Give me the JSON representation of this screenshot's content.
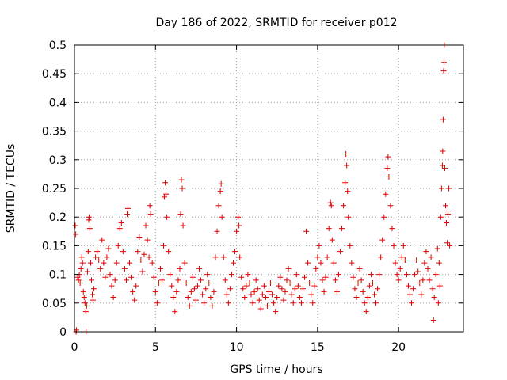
{
  "chart_data": {
    "type": "scatter",
    "title": "Day 186 of 2022, SRMTID for receiver p012",
    "xlabel": "GPS time / hours",
    "ylabel": "SRMTID / TECUs",
    "xlim": [
      0,
      24
    ],
    "ylim": [
      0,
      0.5
    ],
    "grid": true,
    "marker": "+",
    "color": "#e00000",
    "xticks": [
      0,
      5,
      10,
      15,
      20
    ],
    "xtick_labels": [
      "0",
      "5",
      "10",
      "15",
      "20"
    ],
    "yticks": [
      0,
      0.05,
      0.1,
      0.15,
      0.2,
      0.25,
      0.3,
      0.35,
      0.4,
      0.45,
      0.5
    ],
    "ytick_labels": [
      "0",
      "0.05",
      "0.1",
      "0.15",
      "0.2",
      "0.25",
      "0.3",
      "0.35",
      "0.4",
      "0.45",
      "0.5"
    ],
    "series": [
      {
        "name": "SRMTID",
        "points": [
          [
            0.05,
            0.185
          ],
          [
            0.08,
            0.17
          ],
          [
            0.1,
            0.0
          ],
          [
            0.12,
            0.003
          ],
          [
            0.2,
            0.095
          ],
          [
            0.25,
            0.09
          ],
          [
            0.3,
            0.1
          ],
          [
            0.35,
            0.085
          ],
          [
            0.4,
            0.11
          ],
          [
            0.45,
            0.13
          ],
          [
            0.5,
            0.12
          ],
          [
            0.55,
            0.07
          ],
          [
            0.6,
            0.06
          ],
          [
            0.65,
            0.05
          ],
          [
            0.7,
            0.035
          ],
          [
            0.72,
            0.0
          ],
          [
            0.75,
            0.045
          ],
          [
            0.8,
            0.105
          ],
          [
            0.85,
            0.14
          ],
          [
            0.88,
            0.195
          ],
          [
            0.9,
            0.2
          ],
          [
            0.95,
            0.18
          ],
          [
            1.0,
            0.12
          ],
          [
            1.05,
            0.09
          ],
          [
            1.1,
            0.065
          ],
          [
            1.15,
            0.055
          ],
          [
            1.2,
            0.075
          ],
          [
            1.3,
            0.13
          ],
          [
            1.4,
            0.14
          ],
          [
            1.5,
            0.125
          ],
          [
            1.6,
            0.11
          ],
          [
            1.7,
            0.16
          ],
          [
            1.8,
            0.12
          ],
          [
            1.9,
            0.095
          ],
          [
            2.0,
            0.13
          ],
          [
            2.1,
            0.145
          ],
          [
            2.2,
            0.1
          ],
          [
            2.3,
            0.08
          ],
          [
            2.4,
            0.06
          ],
          [
            2.5,
            0.09
          ],
          [
            2.6,
            0.12
          ],
          [
            2.7,
            0.15
          ],
          [
            2.8,
            0.18
          ],
          [
            2.9,
            0.19
          ],
          [
            3.0,
            0.14
          ],
          [
            3.1,
            0.11
          ],
          [
            3.2,
            0.09
          ],
          [
            3.25,
            0.205
          ],
          [
            3.3,
            0.215
          ],
          [
            3.4,
            0.12
          ],
          [
            3.5,
            0.095
          ],
          [
            3.6,
            0.07
          ],
          [
            3.7,
            0.055
          ],
          [
            3.8,
            0.08
          ],
          [
            3.9,
            0.14
          ],
          [
            4.0,
            0.165
          ],
          [
            4.1,
            0.125
          ],
          [
            4.2,
            0.105
          ],
          [
            4.3,
            0.135
          ],
          [
            4.4,
            0.185
          ],
          [
            4.5,
            0.16
          ],
          [
            4.6,
            0.13
          ],
          [
            4.65,
            0.22
          ],
          [
            4.7,
            0.205
          ],
          [
            4.8,
            0.12
          ],
          [
            4.9,
            0.095
          ],
          [
            5.0,
            0.07
          ],
          [
            5.1,
            0.05
          ],
          [
            5.2,
            0.085
          ],
          [
            5.3,
            0.11
          ],
          [
            5.4,
            0.09
          ],
          [
            5.5,
            0.15
          ],
          [
            5.55,
            0.235
          ],
          [
            5.6,
            0.26
          ],
          [
            5.65,
            0.24
          ],
          [
            5.7,
            0.2
          ],
          [
            5.8,
            0.14
          ],
          [
            5.9,
            0.1
          ],
          [
            6.0,
            0.08
          ],
          [
            6.1,
            0.06
          ],
          [
            6.2,
            0.035
          ],
          [
            6.3,
            0.07
          ],
          [
            6.4,
            0.09
          ],
          [
            6.5,
            0.11
          ],
          [
            6.55,
            0.205
          ],
          [
            6.6,
            0.265
          ],
          [
            6.65,
            0.25
          ],
          [
            6.7,
            0.185
          ],
          [
            6.8,
            0.12
          ],
          [
            6.9,
            0.085
          ],
          [
            7.0,
            0.06
          ],
          [
            7.1,
            0.045
          ],
          [
            7.2,
            0.07
          ],
          [
            7.3,
            0.095
          ],
          [
            7.4,
            0.075
          ],
          [
            7.5,
            0.055
          ],
          [
            7.6,
            0.08
          ],
          [
            7.7,
            0.11
          ],
          [
            7.8,
            0.09
          ],
          [
            7.9,
            0.065
          ],
          [
            8.0,
            0.05
          ],
          [
            8.1,
            0.075
          ],
          [
            8.2,
            0.1
          ],
          [
            8.3,
            0.085
          ],
          [
            8.4,
            0.06
          ],
          [
            8.5,
            0.045
          ],
          [
            8.6,
            0.07
          ],
          [
            8.7,
            0.13
          ],
          [
            8.8,
            0.175
          ],
          [
            8.9,
            0.22
          ],
          [
            9.0,
            0.245
          ],
          [
            9.05,
            0.258
          ],
          [
            9.1,
            0.2
          ],
          [
            9.2,
            0.13
          ],
          [
            9.3,
            0.09
          ],
          [
            9.4,
            0.065
          ],
          [
            9.5,
            0.05
          ],
          [
            9.6,
            0.075
          ],
          [
            9.7,
            0.1
          ],
          [
            9.8,
            0.12
          ],
          [
            9.9,
            0.14
          ],
          [
            10.0,
            0.175
          ],
          [
            10.1,
            0.2
          ],
          [
            10.15,
            0.185
          ],
          [
            10.2,
            0.13
          ],
          [
            10.3,
            0.095
          ],
          [
            10.4,
            0.075
          ],
          [
            10.5,
            0.06
          ],
          [
            10.6,
            0.08
          ],
          [
            10.7,
            0.1
          ],
          [
            10.8,
            0.085
          ],
          [
            10.9,
            0.065
          ],
          [
            11.0,
            0.05
          ],
          [
            11.1,
            0.07
          ],
          [
            11.2,
            0.09
          ],
          [
            11.3,
            0.075
          ],
          [
            11.4,
            0.055
          ],
          [
            11.5,
            0.04
          ],
          [
            11.6,
            0.065
          ],
          [
            11.7,
            0.08
          ],
          [
            11.8,
            0.06
          ],
          [
            11.9,
            0.045
          ],
          [
            12.0,
            0.07
          ],
          [
            12.1,
            0.085
          ],
          [
            12.2,
            0.065
          ],
          [
            12.3,
            0.05
          ],
          [
            12.4,
            0.035
          ],
          [
            12.5,
            0.06
          ],
          [
            12.6,
            0.08
          ],
          [
            12.7,
            0.095
          ],
          [
            12.8,
            0.075
          ],
          [
            12.9,
            0.055
          ],
          [
            13.0,
            0.07
          ],
          [
            13.1,
            0.09
          ],
          [
            13.2,
            0.11
          ],
          [
            13.3,
            0.085
          ],
          [
            13.4,
            0.065
          ],
          [
            13.5,
            0.05
          ],
          [
            13.6,
            0.075
          ],
          [
            13.7,
            0.1
          ],
          [
            13.8,
            0.08
          ],
          [
            13.9,
            0.06
          ],
          [
            14.0,
            0.05
          ],
          [
            14.1,
            0.075
          ],
          [
            14.2,
            0.095
          ],
          [
            14.3,
            0.175
          ],
          [
            14.4,
            0.12
          ],
          [
            14.5,
            0.085
          ],
          [
            14.6,
            0.065
          ],
          [
            14.7,
            0.05
          ],
          [
            14.8,
            0.08
          ],
          [
            14.9,
            0.11
          ],
          [
            15.0,
            0.13
          ],
          [
            15.1,
            0.15
          ],
          [
            15.2,
            0.12
          ],
          [
            15.3,
            0.09
          ],
          [
            15.4,
            0.07
          ],
          [
            15.5,
            0.095
          ],
          [
            15.6,
            0.13
          ],
          [
            15.7,
            0.18
          ],
          [
            15.8,
            0.225
          ],
          [
            15.85,
            0.22
          ],
          [
            15.9,
            0.16
          ],
          [
            16.0,
            0.12
          ],
          [
            16.1,
            0.09
          ],
          [
            16.2,
            0.07
          ],
          [
            16.3,
            0.1
          ],
          [
            16.4,
            0.14
          ],
          [
            16.5,
            0.18
          ],
          [
            16.6,
            0.22
          ],
          [
            16.7,
            0.26
          ],
          [
            16.75,
            0.31
          ],
          [
            16.8,
            0.29
          ],
          [
            16.85,
            0.245
          ],
          [
            16.9,
            0.2
          ],
          [
            17.0,
            0.15
          ],
          [
            17.1,
            0.12
          ],
          [
            17.2,
            0.095
          ],
          [
            17.3,
            0.075
          ],
          [
            17.4,
            0.06
          ],
          [
            17.5,
            0.085
          ],
          [
            17.6,
            0.11
          ],
          [
            17.7,
            0.09
          ],
          [
            17.8,
            0.07
          ],
          [
            17.9,
            0.05
          ],
          [
            18.0,
            0.035
          ],
          [
            18.1,
            0.06
          ],
          [
            18.2,
            0.08
          ],
          [
            18.3,
            0.1
          ],
          [
            18.4,
            0.085
          ],
          [
            18.5,
            0.065
          ],
          [
            18.6,
            0.05
          ],
          [
            18.7,
            0.075
          ],
          [
            18.8,
            0.1
          ],
          [
            18.9,
            0.13
          ],
          [
            19.0,
            0.16
          ],
          [
            19.1,
            0.2
          ],
          [
            19.2,
            0.24
          ],
          [
            19.3,
            0.285
          ],
          [
            19.35,
            0.305
          ],
          [
            19.4,
            0.27
          ],
          [
            19.5,
            0.22
          ],
          [
            19.6,
            0.18
          ],
          [
            19.7,
            0.15
          ],
          [
            19.8,
            0.12
          ],
          [
            19.9,
            0.1
          ],
          [
            20.0,
            0.09
          ],
          [
            20.1,
            0.11
          ],
          [
            20.2,
            0.13
          ],
          [
            20.3,
            0.15
          ],
          [
            20.4,
            0.125
          ],
          [
            20.5,
            0.1
          ],
          [
            20.6,
            0.08
          ],
          [
            20.7,
            0.065
          ],
          [
            20.8,
            0.05
          ],
          [
            20.9,
            0.075
          ],
          [
            21.0,
            0.1
          ],
          [
            21.1,
            0.125
          ],
          [
            21.2,
            0.105
          ],
          [
            21.3,
            0.085
          ],
          [
            21.4,
            0.065
          ],
          [
            21.5,
            0.09
          ],
          [
            21.6,
            0.12
          ],
          [
            21.7,
            0.14
          ],
          [
            21.8,
            0.11
          ],
          [
            21.9,
            0.09
          ],
          [
            22.0,
            0.13
          ],
          [
            22.1,
            0.075
          ],
          [
            22.15,
            0.02
          ],
          [
            22.2,
            0.06
          ],
          [
            22.3,
            0.1
          ],
          [
            22.4,
            0.145
          ],
          [
            22.45,
            0.05
          ],
          [
            22.5,
            0.12
          ],
          [
            22.55,
            0.08
          ],
          [
            22.6,
            0.2
          ],
          [
            22.65,
            0.25
          ],
          [
            22.7,
            0.29
          ],
          [
            22.72,
            0.315
          ],
          [
            22.75,
            0.37
          ],
          [
            22.78,
            0.455
          ],
          [
            22.8,
            0.47
          ],
          [
            22.82,
            0.5
          ],
          [
            22.85,
            0.285
          ],
          [
            22.9,
            0.22
          ],
          [
            22.95,
            0.19
          ],
          [
            23.0,
            0.155
          ],
          [
            23.05,
            0.205
          ],
          [
            23.1,
            0.25
          ],
          [
            23.15,
            0.15
          ]
        ]
      }
    ]
  }
}
